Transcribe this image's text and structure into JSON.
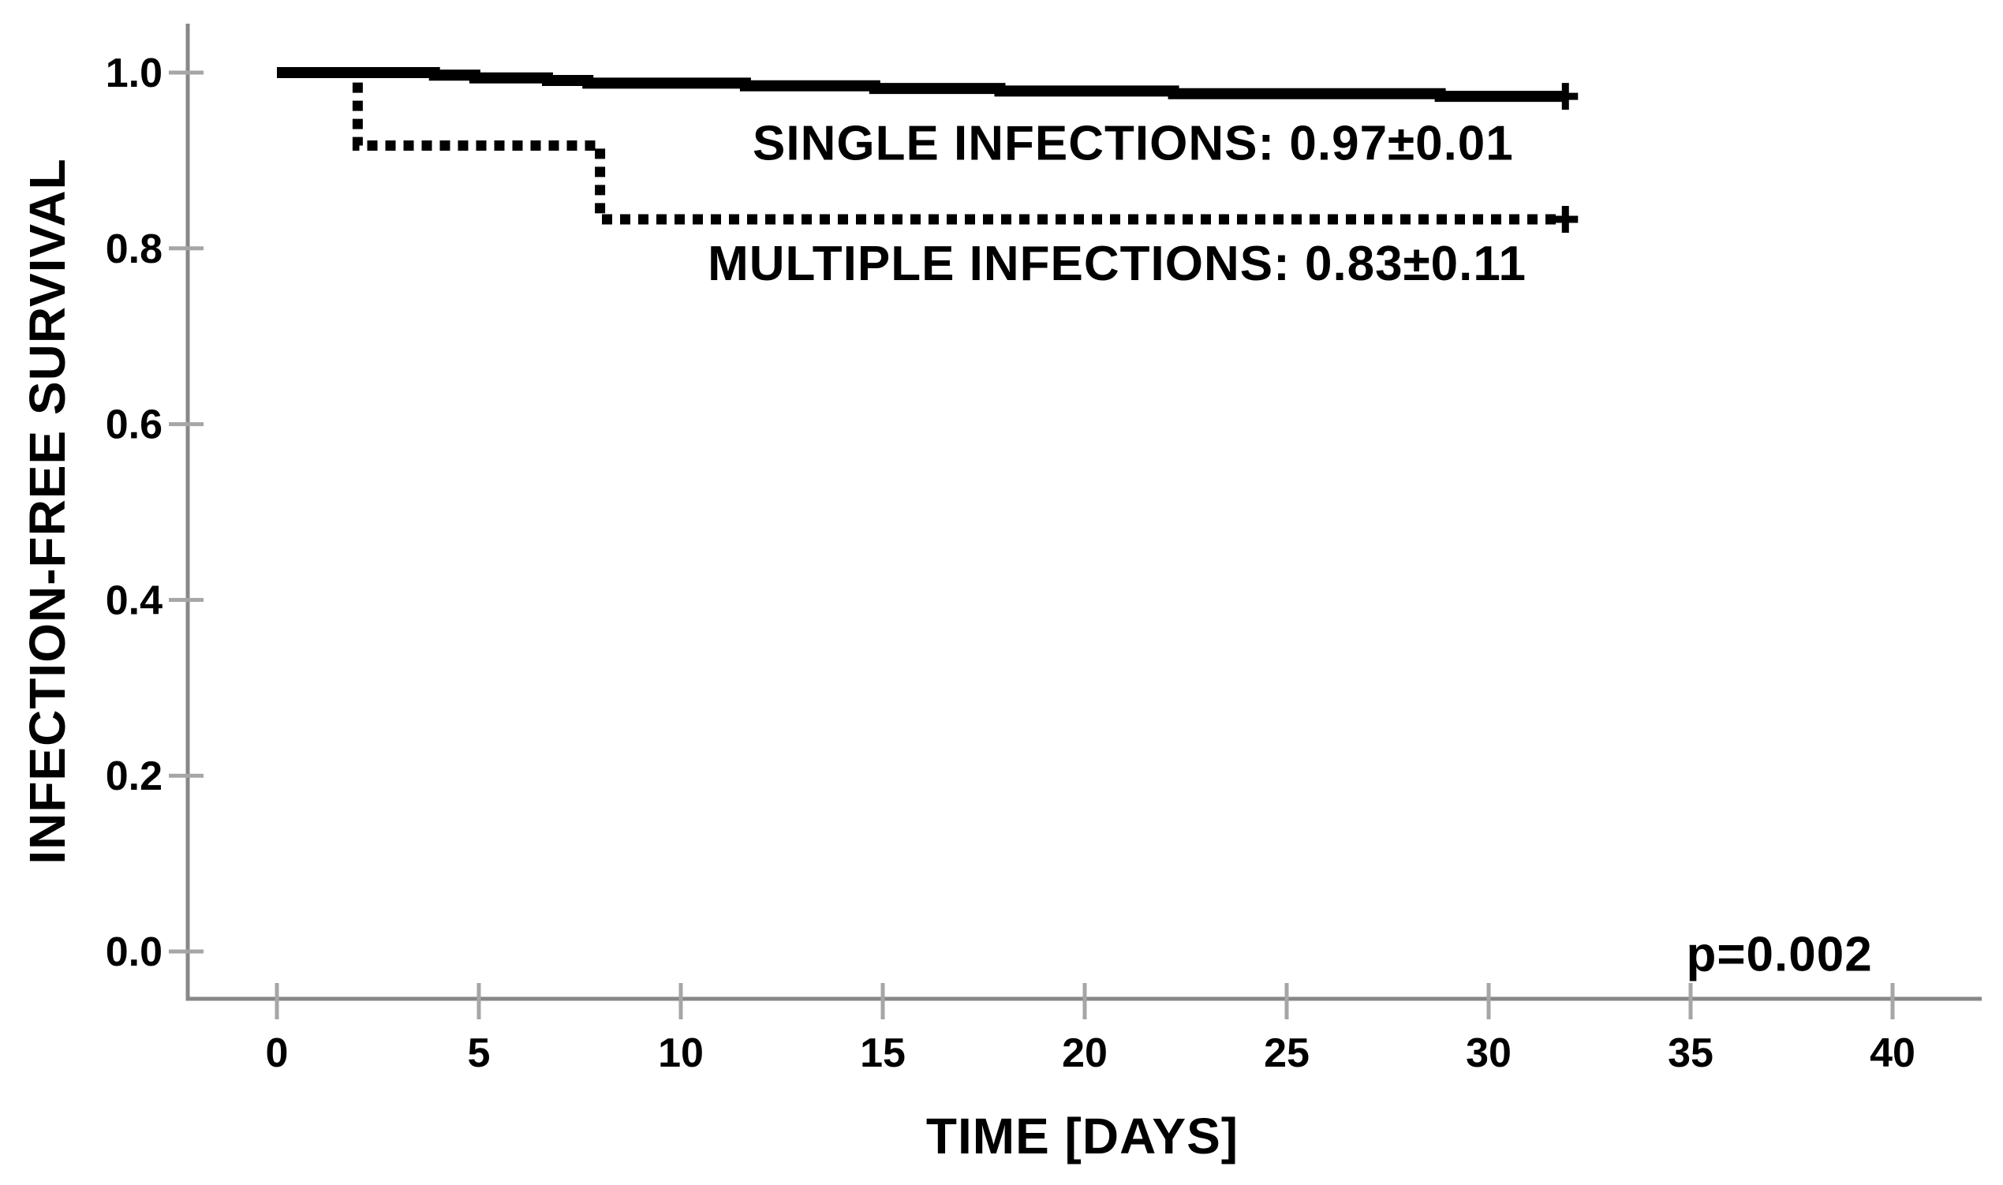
{
  "page": {
    "background": "#ffffff"
  },
  "chart_data": {
    "type": "line",
    "subtype": "kaplan_meier_step",
    "title": "",
    "xlabel": "TIME [DAYS]",
    "ylabel": "INFECTION-FREE SURVIVAL",
    "xlim": [
      -2.2,
      42.2
    ],
    "ylim": [
      -0.054,
      1.055
    ],
    "grid": false,
    "legend_position": "inline-annotations",
    "background": "#ffffff",
    "axis_color": "#878787",
    "tick_color": "#a6a6a6",
    "line_color": "#000000",
    "x_ticks": [
      {
        "value": 0,
        "label": "0"
      },
      {
        "value": 5,
        "label": "5"
      },
      {
        "value": 10,
        "label": "10"
      },
      {
        "value": 15,
        "label": "15"
      },
      {
        "value": 20,
        "label": "20"
      },
      {
        "value": 25,
        "label": "25"
      },
      {
        "value": 30,
        "label": "30"
      },
      {
        "value": 35,
        "label": "35"
      },
      {
        "value": 40,
        "label": "40"
      }
    ],
    "y_ticks": [
      {
        "value": 0.0,
        "label": "0.0"
      },
      {
        "value": 0.2,
        "label": "0.2"
      },
      {
        "value": 0.4,
        "label": "0.4"
      },
      {
        "value": 0.6,
        "label": "0.6"
      },
      {
        "value": 0.8,
        "label": "0.8"
      },
      {
        "value": 1.0,
        "label": "1.0"
      }
    ],
    "series": [
      {
        "name": "SINGLE INFECTIONS",
        "estimate": "0.97±0.01",
        "line_style": "solid",
        "color": "#000000",
        "points": [
          [
            0,
            1.0
          ],
          [
            3.9,
            1.0
          ],
          [
            3.9,
            0.997
          ],
          [
            4.9,
            0.997
          ],
          [
            4.9,
            0.994
          ],
          [
            6.7,
            0.994
          ],
          [
            6.7,
            0.991
          ],
          [
            7.7,
            0.991
          ],
          [
            7.7,
            0.988
          ],
          [
            11.6,
            0.988
          ],
          [
            11.6,
            0.985
          ],
          [
            14.8,
            0.985
          ],
          [
            14.8,
            0.982
          ],
          [
            17.9,
            0.982
          ],
          [
            17.9,
            0.979
          ],
          [
            22.2,
            0.979
          ],
          [
            22.2,
            0.976
          ],
          [
            28.8,
            0.976
          ],
          [
            28.8,
            0.973
          ],
          [
            31.9,
            0.973
          ]
        ],
        "censor_marks": [
          [
            31.9,
            0.973
          ]
        ]
      },
      {
        "name": "MULTIPLE INFECTIONS",
        "estimate": "0.83±0.11",
        "line_style": "dotted",
        "color": "#000000",
        "points": [
          [
            0,
            1.0
          ],
          [
            2.0,
            1.0
          ],
          [
            2.0,
            0.917
          ],
          [
            8.0,
            0.917
          ],
          [
            8.0,
            0.833
          ],
          [
            31.9,
            0.833
          ]
        ],
        "censor_marks": [
          [
            31.9,
            0.833
          ]
        ]
      }
    ],
    "annotations": [
      {
        "text": "SINGLE INFECTIONS: 0.97±0.01",
        "x": 21.2,
        "y": 0.901,
        "align": "middle"
      },
      {
        "text": "MULTIPLE INFECTIONS: 0.83±0.11",
        "x": 20.8,
        "y": 0.764,
        "align": "middle"
      },
      {
        "text": "p=0.002",
        "x": 37.2,
        "y": -0.022,
        "align": "middle"
      }
    ]
  }
}
